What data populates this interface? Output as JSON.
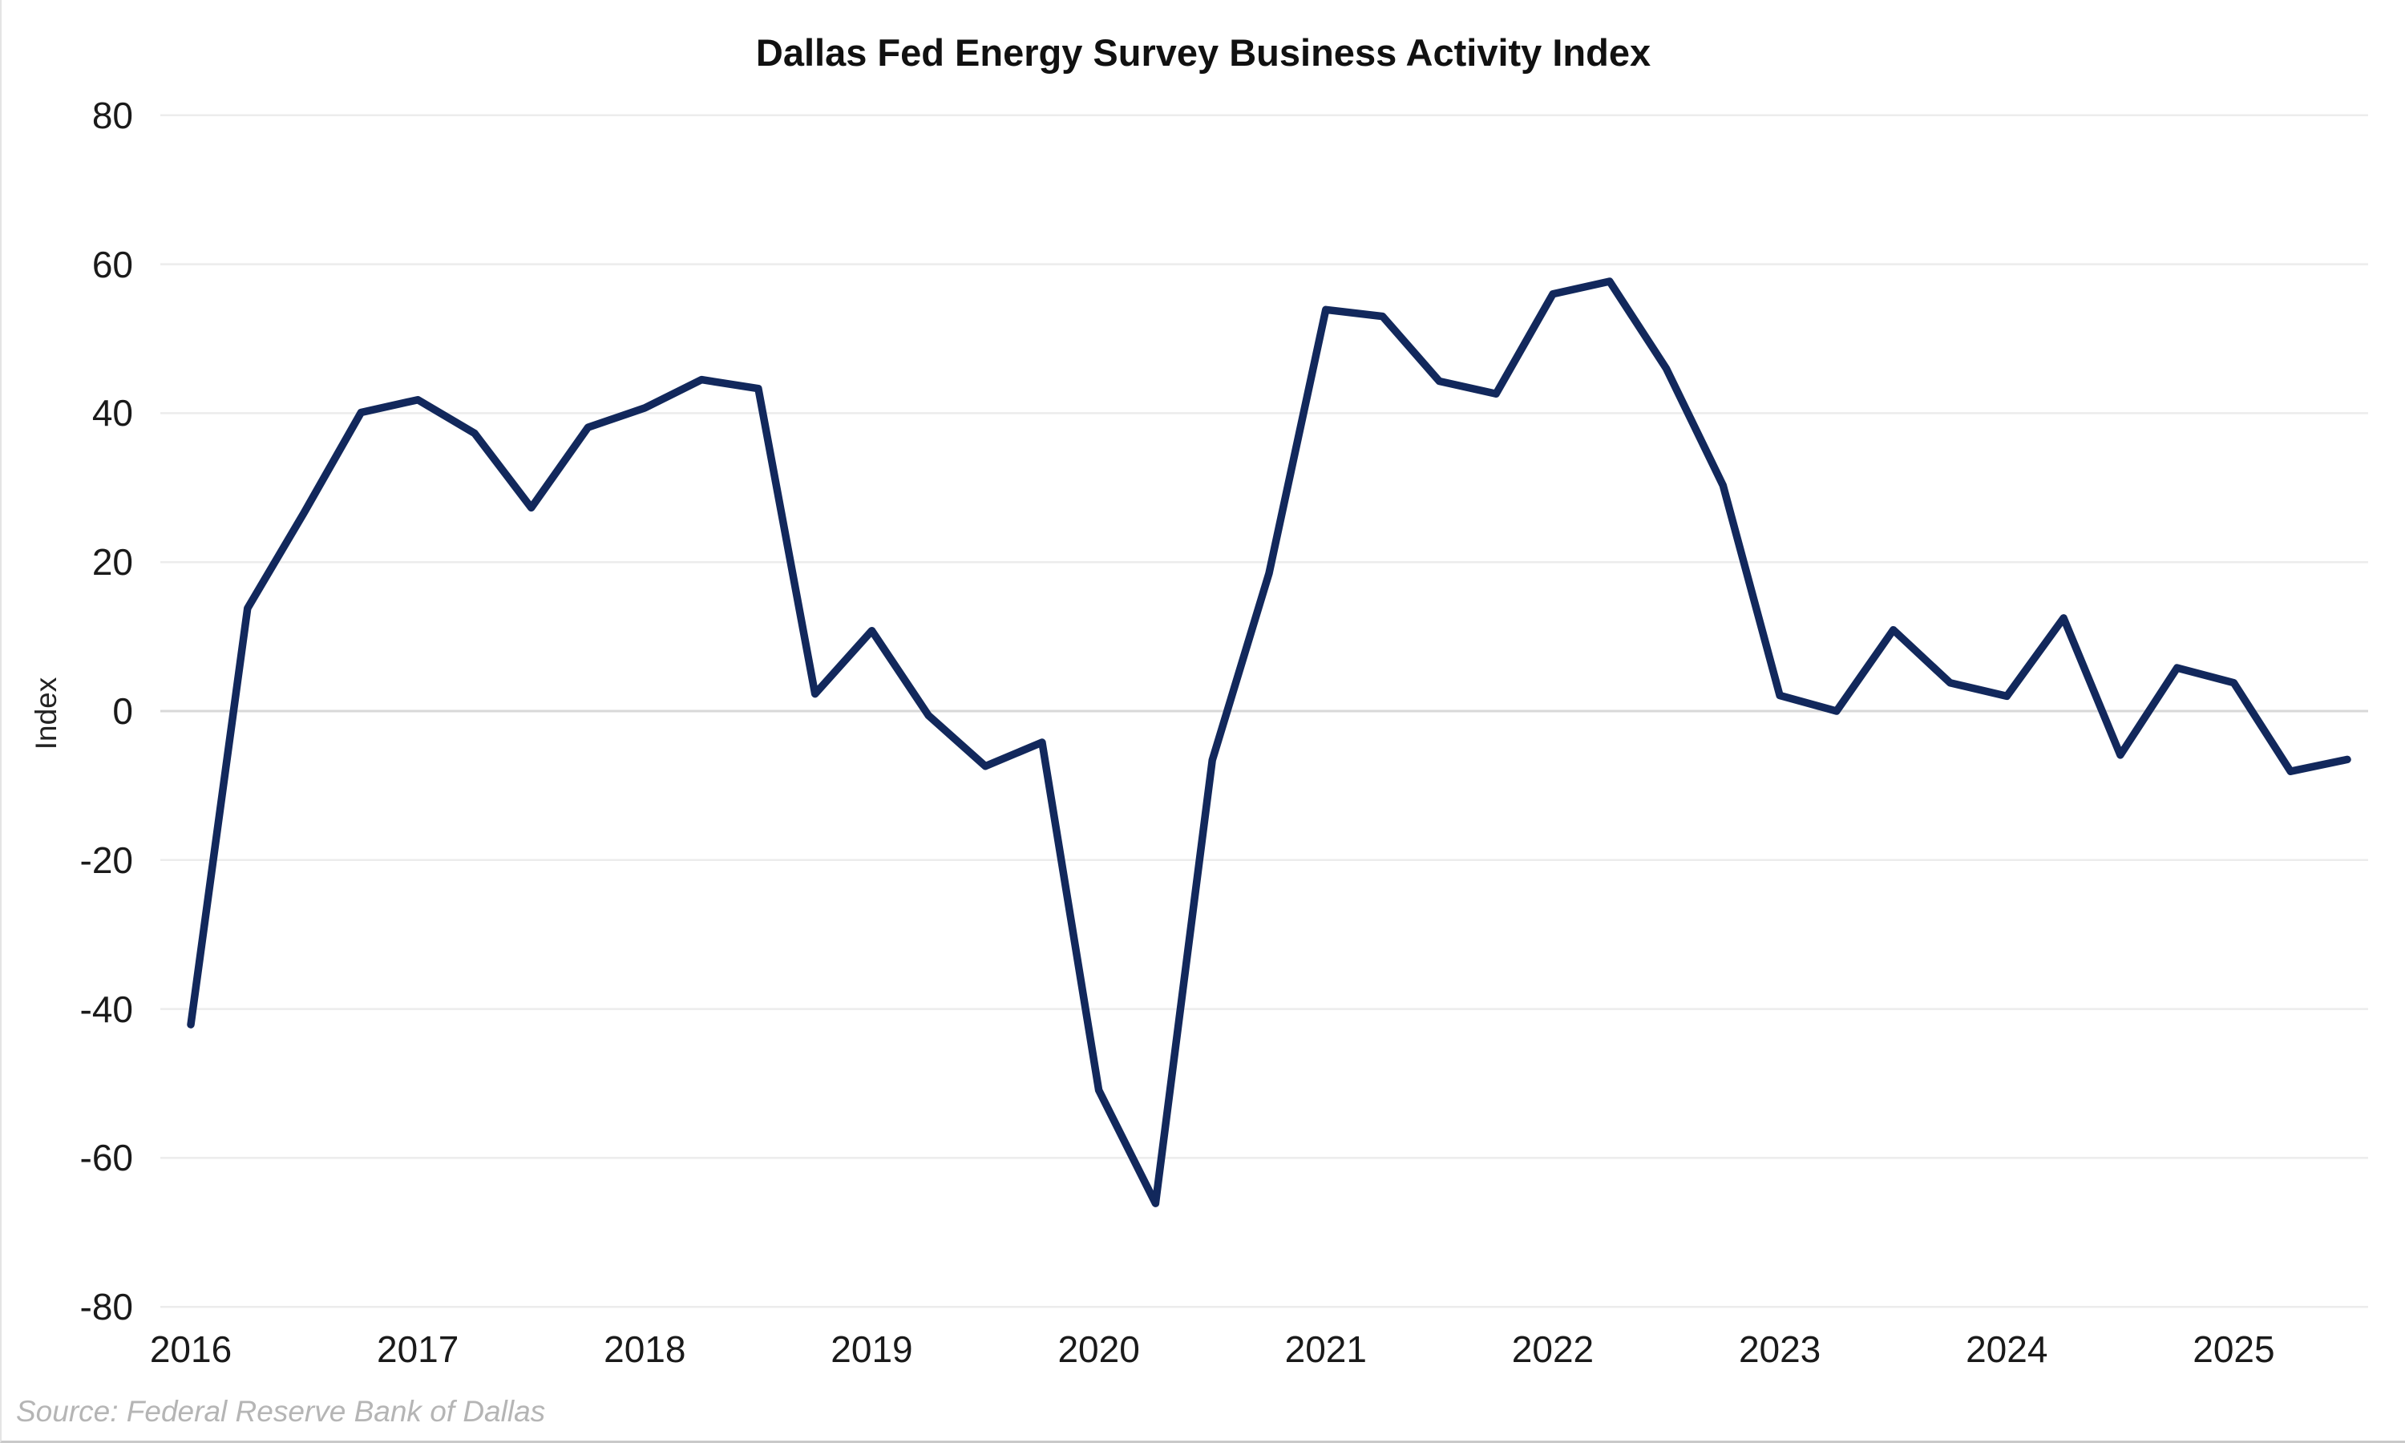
{
  "title": "Dallas Fed Energy Survey Business Activity Index",
  "source_note": "Source: Federal Reserve Bank of Dallas",
  "chart_data": {
    "type": "line",
    "title": "Dallas Fed Energy Survey Business Activity Index",
    "xlabel": "",
    "ylabel": "Index",
    "ylim": [
      -80,
      80
    ],
    "y_ticks": [
      80,
      60,
      40,
      20,
      0,
      -20,
      -40,
      -60,
      -80
    ],
    "x_tick_labels": [
      "2016",
      "2017",
      "2018",
      "2019",
      "2020",
      "2021",
      "2022",
      "2023",
      "2024",
      "2025"
    ],
    "grid": "horizontal-only",
    "legend": "none",
    "line_color": "#12285c",
    "gridline_color": "#ececec",
    "zero_line_color": "#d8d8d8",
    "title_color": "#111111",
    "tick_label_color": "#1a1a1a",
    "source_color": "#b5b5b5",
    "series": [
      {
        "name": "Business Activity Index",
        "periods": [
          "2016 Q1",
          "2016 Q2",
          "2016 Q3",
          "2016 Q4",
          "2017 Q1",
          "2017 Q2",
          "2017 Q3",
          "2017 Q4",
          "2018 Q1",
          "2018 Q2",
          "2018 Q3",
          "2018 Q4",
          "2019 Q1",
          "2019 Q2",
          "2019 Q3",
          "2019 Q4",
          "2020 Q1",
          "2020 Q2",
          "2020 Q3",
          "2020 Q4",
          "2021 Q1",
          "2021 Q2",
          "2021 Q3",
          "2021 Q4",
          "2022 Q1",
          "2022 Q2",
          "2022 Q3",
          "2022 Q4",
          "2023 Q1",
          "2023 Q2",
          "2023 Q3",
          "2023 Q4",
          "2024 Q1",
          "2024 Q2",
          "2024 Q3",
          "2024 Q4",
          "2025 Q1",
          "2025 Q2",
          "2025 Q3"
        ],
        "values": [
          -42.1,
          13.8,
          26.7,
          40.1,
          41.8,
          37.3,
          27.3,
          38.1,
          40.7,
          44.5,
          43.3,
          2.3,
          10.8,
          -0.6,
          -7.4,
          -4.2,
          -50.9,
          -66.1,
          -6.6,
          18.5,
          53.9,
          53.0,
          44.3,
          42.6,
          56.0,
          57.7,
          46.0,
          30.3,
          2.1,
          0.0,
          10.9,
          3.8,
          2.0,
          12.5,
          -5.9,
          5.8,
          3.8,
          -8.1,
          -6.5
        ]
      }
    ]
  }
}
